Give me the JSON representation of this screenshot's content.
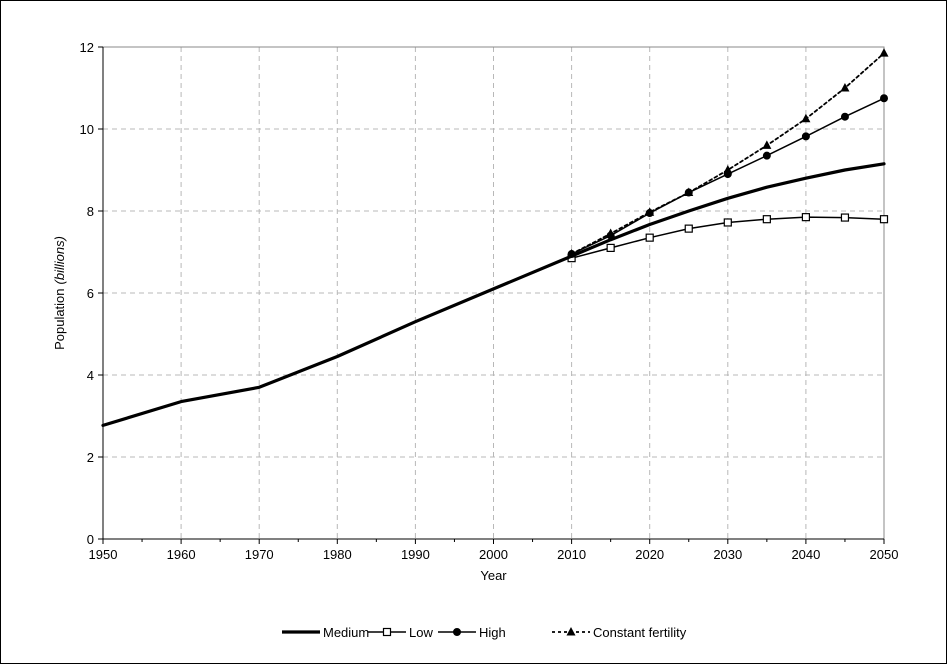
{
  "chart_data": {
    "type": "line",
    "title": "",
    "xlabel": "Year",
    "ylabel": "Population",
    "ylabel_italic": "(billions)",
    "xlim": [
      1950,
      2050
    ],
    "ylim": [
      0,
      12
    ],
    "xticks": [
      1950,
      1960,
      1970,
      1980,
      1990,
      2000,
      2010,
      2020,
      2030,
      2040,
      2050
    ],
    "yticks": [
      0,
      2,
      4,
      6,
      8,
      10,
      12
    ],
    "grid": true,
    "legend_position": "bottom",
    "series": [
      {
        "name": "Medium",
        "marker": "none",
        "style": "solid-thick",
        "x": [
          1950,
          1960,
          1970,
          1980,
          1990,
          2000,
          2010,
          2015,
          2020,
          2025,
          2030,
          2035,
          2040,
          2045,
          2050
        ],
        "y": [
          2.77,
          3.35,
          3.7,
          4.45,
          5.3,
          6.1,
          6.9,
          7.3,
          7.67,
          8.0,
          8.31,
          8.58,
          8.8,
          9.0,
          9.15
        ]
      },
      {
        "name": "Low",
        "marker": "square-open",
        "style": "solid",
        "x": [
          2010,
          2015,
          2020,
          2025,
          2030,
          2035,
          2040,
          2045,
          2050
        ],
        "y": [
          6.85,
          7.1,
          7.35,
          7.57,
          7.72,
          7.8,
          7.85,
          7.84,
          7.8
        ]
      },
      {
        "name": "High",
        "marker": "diamond",
        "style": "solid",
        "x": [
          2010,
          2015,
          2020,
          2025,
          2030,
          2035,
          2040,
          2045,
          2050
        ],
        "y": [
          6.95,
          7.4,
          7.95,
          8.45,
          8.9,
          9.35,
          9.82,
          10.3,
          10.75
        ]
      },
      {
        "name": "Constant fertility",
        "marker": "triangle",
        "style": "dotted",
        "x": [
          2010,
          2015,
          2020,
          2025,
          2030,
          2035,
          2040,
          2045,
          2050
        ],
        "y": [
          6.95,
          7.45,
          7.97,
          8.45,
          9.0,
          9.6,
          10.25,
          11.0,
          11.85
        ]
      }
    ]
  }
}
